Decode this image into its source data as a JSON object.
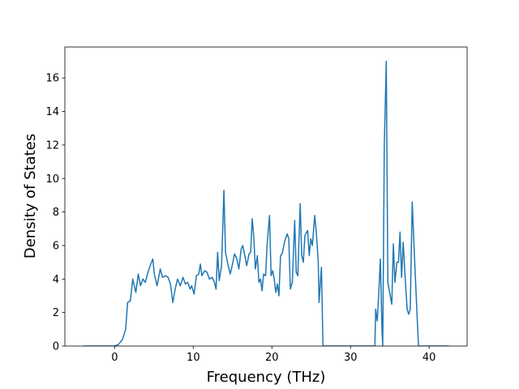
{
  "chart_data": {
    "type": "line",
    "xlabel": "Frequency (THz)",
    "ylabel": "Density of States",
    "x": [
      -4,
      0,
      0.5,
      1,
      1.4,
      1.65,
      2.0,
      2.3,
      2.7,
      3.0,
      3.3,
      3.6,
      3.9,
      4.3,
      4.6,
      4.85,
      5.05,
      5.4,
      5.8,
      6.1,
      6.5,
      6.8,
      7.1,
      7.4,
      7.7,
      8.0,
      8.35,
      8.7,
      9.0,
      9.3,
      9.6,
      9.8,
      10.1,
      10.4,
      10.7,
      10.9,
      11.1,
      11.45,
      11.75,
      12.05,
      12.4,
      12.7,
      12.9,
      13.1,
      13.3,
      13.6,
      13.9,
      14.1,
      14.4,
      14.7,
      14.95,
      15.25,
      15.55,
      15.8,
      16.1,
      16.3,
      16.6,
      16.8,
      17.1,
      17.3,
      17.5,
      17.7,
      17.9,
      18.15,
      18.35,
      18.55,
      18.75,
      18.95,
      19.2,
      19.4,
      19.7,
      19.9,
      20.1,
      20.3,
      20.5,
      20.7,
      20.9,
      21.1,
      21.3,
      21.65,
      21.95,
      22.15,
      22.35,
      22.6,
      22.9,
      23.1,
      23.3,
      23.6,
      23.8,
      24.0,
      24.2,
      24.55,
      24.75,
      24.95,
      25.15,
      25.45,
      25.65,
      25.9,
      26.0,
      26.3,
      26.5,
      33.1,
      33.2,
      33.4,
      33.6,
      33.8,
      34.0,
      34.1,
      34.3,
      34.55,
      34.75,
      35.05,
      35.25,
      35.45,
      35.65,
      35.9,
      36.1,
      36.3,
      36.5,
      36.7,
      36.9,
      37.2,
      37.4,
      37.6,
      37.85,
      38.15,
      38.45,
      38.65,
      42.5
    ],
    "series": [
      {
        "color": "#1f77b4",
        "values": [
          0,
          0,
          0.1,
          0.4,
          1.0,
          2.6,
          2.7,
          4.0,
          3.2,
          4.3,
          3.6,
          4.0,
          3.8,
          4.5,
          4.9,
          5.2,
          4.3,
          3.6,
          4.6,
          4.1,
          4.2,
          4.1,
          3.7,
          2.6,
          3.4,
          4.0,
          3.6,
          4.1,
          3.7,
          3.8,
          3.4,
          3.6,
          3.1,
          4.2,
          4.3,
          4.9,
          4.2,
          4.5,
          4.4,
          4.0,
          4.1,
          3.8,
          3.4,
          5.6,
          3.9,
          4.8,
          9.3,
          5.6,
          4.9,
          4.3,
          4.8,
          5.5,
          5.2,
          4.6,
          5.8,
          6.0,
          5.3,
          4.8,
          5.5,
          5.6,
          7.6,
          6.5,
          4.6,
          5.4,
          3.8,
          4.0,
          3.3,
          4.3,
          4.2,
          6.1,
          7.8,
          4.2,
          4.5,
          4.0,
          3.2,
          3.7,
          3.0,
          5.4,
          5.5,
          6.3,
          6.7,
          6.4,
          3.4,
          3.8,
          7.5,
          4.4,
          4.2,
          8.5,
          5.4,
          5.0,
          6.6,
          6.9,
          5.4,
          6.4,
          6.0,
          7.8,
          6.8,
          5.0,
          2.6,
          4.7,
          0,
          0,
          2.2,
          1.5,
          3.2,
          5.2,
          1.0,
          0,
          12.0,
          17.0,
          3.8,
          3.0,
          2.5,
          6.1,
          3.8,
          5.0,
          5.0,
          6.8,
          4.1,
          6.2,
          4.5,
          2.2,
          1.9,
          2.2,
          8.6,
          5.2,
          2.0,
          0,
          0
        ]
      }
    ],
    "xlim": [
      -6.33,
      44.83
    ],
    "ylim": [
      0,
      17.85
    ],
    "xticks": [
      0,
      10,
      20,
      30,
      40
    ],
    "yticks": [
      0,
      2,
      4,
      6,
      8,
      10,
      12,
      14,
      16
    ],
    "grid": false
  }
}
